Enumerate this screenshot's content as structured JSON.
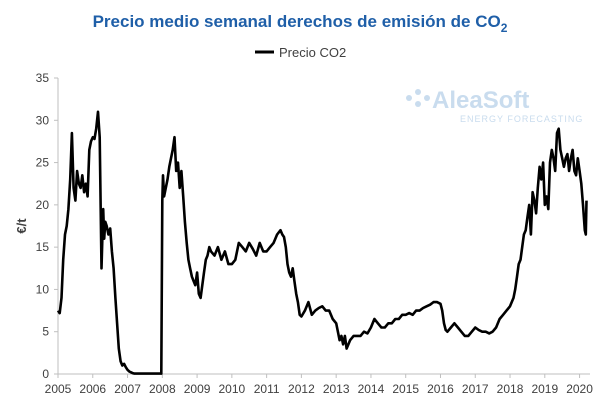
{
  "chart_data": {
    "type": "line",
    "title": "Precio medio semanal derechos de emisión de CO",
    "title_subscript": "2",
    "xlabel": "",
    "ylabel": "€/t",
    "xlim": [
      2005,
      2020.3
    ],
    "ylim": [
      0,
      35
    ],
    "x_ticks": [
      "2005",
      "2006",
      "2007",
      "2008",
      "2009",
      "2010",
      "2011",
      "2012",
      "2013",
      "2014",
      "2015",
      "2016",
      "2017",
      "2018",
      "2019",
      "2020"
    ],
    "y_ticks": [
      "0",
      "5",
      "10",
      "15",
      "20",
      "25",
      "30",
      "35"
    ],
    "grid": false,
    "legend_position": "top-center",
    "watermark": {
      "brand": "AleaSoft",
      "tagline": "ENERGY FORECASTING",
      "color": "#c9dcee"
    },
    "series": [
      {
        "name": "Precio CO2",
        "color": "#000000",
        "x": [
          2005.0,
          2005.05,
          2005.1,
          2005.15,
          2005.2,
          2005.25,
          2005.3,
          2005.35,
          2005.4,
          2005.45,
          2005.5,
          2005.55,
          2005.6,
          2005.65,
          2005.7,
          2005.75,
          2005.8,
          2005.85,
          2005.9,
          2005.95,
          2006.0,
          2006.05,
          2006.1,
          2006.15,
          2006.2,
          2006.25,
          2006.3,
          2006.33,
          2006.36,
          2006.4,
          2006.45,
          2006.5,
          2006.55,
          2006.6,
          2006.65,
          2006.7,
          2006.75,
          2006.8,
          2006.85,
          2006.9,
          2006.95,
          2007.0,
          2007.05,
          2007.1,
          2007.15,
          2007.2,
          2007.3,
          2007.4,
          2007.5,
          2007.6,
          2007.7,
          2007.8,
          2007.9,
          2007.97,
          2008.0,
          2008.02,
          2008.05,
          2008.1,
          2008.15,
          2008.2,
          2008.25,
          2008.3,
          2008.35,
          2008.4,
          2008.45,
          2008.5,
          2008.55,
          2008.6,
          2008.65,
          2008.7,
          2008.75,
          2008.8,
          2008.85,
          2008.9,
          2008.95,
          2009.0,
          2009.05,
          2009.1,
          2009.15,
          2009.2,
          2009.25,
          2009.3,
          2009.35,
          2009.4,
          2009.5,
          2009.6,
          2009.7,
          2009.8,
          2009.9,
          2010.0,
          2010.1,
          2010.2,
          2010.3,
          2010.4,
          2010.5,
          2010.6,
          2010.7,
          2010.8,
          2010.9,
          2011.0,
          2011.1,
          2011.2,
          2011.3,
          2011.4,
          2011.45,
          2011.5,
          2011.55,
          2011.6,
          2011.65,
          2011.7,
          2011.75,
          2011.8,
          2011.85,
          2011.9,
          2011.95,
          2012.0,
          2012.1,
          2012.2,
          2012.3,
          2012.4,
          2012.5,
          2012.6,
          2012.7,
          2012.8,
          2012.9,
          2013.0,
          2013.05,
          2013.1,
          2013.15,
          2013.2,
          2013.25,
          2013.3,
          2013.4,
          2013.5,
          2013.6,
          2013.7,
          2013.8,
          2013.9,
          2014.0,
          2014.1,
          2014.2,
          2014.3,
          2014.4,
          2014.5,
          2014.6,
          2014.7,
          2014.8,
          2014.9,
          2015.0,
          2015.1,
          2015.2,
          2015.3,
          2015.4,
          2015.5,
          2015.6,
          2015.7,
          2015.8,
          2015.9,
          2016.0,
          2016.05,
          2016.1,
          2016.15,
          2016.2,
          2016.3,
          2016.4,
          2016.5,
          2016.6,
          2016.7,
          2016.8,
          2016.9,
          2017.0,
          2017.1,
          2017.2,
          2017.3,
          2017.4,
          2017.5,
          2017.6,
          2017.7,
          2017.8,
          2017.9,
          2018.0,
          2018.1,
          2018.15,
          2018.2,
          2018.25,
          2018.3,
          2018.35,
          2018.4,
          2018.45,
          2018.5,
          2018.55,
          2018.6,
          2018.65,
          2018.7,
          2018.75,
          2018.8,
          2018.85,
          2018.9,
          2018.95,
          2019.0,
          2019.05,
          2019.1,
          2019.15,
          2019.2,
          2019.25,
          2019.3,
          2019.35,
          2019.4,
          2019.45,
          2019.5,
          2019.55,
          2019.6,
          2019.65,
          2019.7,
          2019.75,
          2019.8,
          2019.85,
          2019.9,
          2019.95,
          2020.0,
          2020.05,
          2020.1,
          2020.15,
          2020.18,
          2020.2
        ],
        "y": [
          7.5,
          7.2,
          9.0,
          13.5,
          16.5,
          17.5,
          19.5,
          23.0,
          28.5,
          22.0,
          20.5,
          24.0,
          22.5,
          22.0,
          23.5,
          21.5,
          22.5,
          21.0,
          26.5,
          27.5,
          28.0,
          27.8,
          29.0,
          31.0,
          28.0,
          12.5,
          19.5,
          16.0,
          18.0,
          17.5,
          16.5,
          17.2,
          14.5,
          12.5,
          9.0,
          6.0,
          3.0,
          1.5,
          1.0,
          1.2,
          0.8,
          0.5,
          0.3,
          0.2,
          0.1,
          0.05,
          0.05,
          0.05,
          0.05,
          0.05,
          0.05,
          0.05,
          0.05,
          0.05,
          20.5,
          23.5,
          21.0,
          22.0,
          23.0,
          24.5,
          25.5,
          26.5,
          28.0,
          24.0,
          25.0,
          22.0,
          24.0,
          21.0,
          18.0,
          15.5,
          13.5,
          12.5,
          11.5,
          11.0,
          10.5,
          12.0,
          9.5,
          9.0,
          10.5,
          12.0,
          13.5,
          14.0,
          15.0,
          14.5,
          14.0,
          15.0,
          13.5,
          14.5,
          13.0,
          13.0,
          13.5,
          15.5,
          15.0,
          14.5,
          15.5,
          14.8,
          14.0,
          15.5,
          14.5,
          14.5,
          15.0,
          15.5,
          16.5,
          17.0,
          16.5,
          16.2,
          15.0,
          13.0,
          12.0,
          11.5,
          12.5,
          11.0,
          9.5,
          8.5,
          7.0,
          6.8,
          7.5,
          8.5,
          7.0,
          7.5,
          7.8,
          8.0,
          7.5,
          7.5,
          6.5,
          6.0,
          5.0,
          4.0,
          4.5,
          3.5,
          4.5,
          3.0,
          4.0,
          4.5,
          4.5,
          4.5,
          5.0,
          4.8,
          5.5,
          6.5,
          6.0,
          5.5,
          5.5,
          6.0,
          6.0,
          6.5,
          6.5,
          7.0,
          7.0,
          7.2,
          7.0,
          7.5,
          7.5,
          7.8,
          8.0,
          8.2,
          8.5,
          8.5,
          8.3,
          7.5,
          6.0,
          5.2,
          5.0,
          5.5,
          6.0,
          5.5,
          5.0,
          4.5,
          4.5,
          5.0,
          5.5,
          5.2,
          5.0,
          5.0,
          4.8,
          5.0,
          5.5,
          6.5,
          7.0,
          7.5,
          8.0,
          9.0,
          10.0,
          11.5,
          13.0,
          13.5,
          15.0,
          16.5,
          17.0,
          18.5,
          20.0,
          16.5,
          21.5,
          20.5,
          19.0,
          22.0,
          24.5,
          23.0,
          25.0,
          20.0,
          21.0,
          19.5,
          25.0,
          26.5,
          25.5,
          24.0,
          28.5,
          29.0,
          26.5,
          25.5,
          24.5,
          25.5,
          26.0,
          24.0,
          25.5,
          26.5,
          24.0,
          23.5,
          25.5,
          24.0,
          22.5,
          20.0,
          17.0,
          16.5,
          20.5
        ]
      }
    ]
  }
}
